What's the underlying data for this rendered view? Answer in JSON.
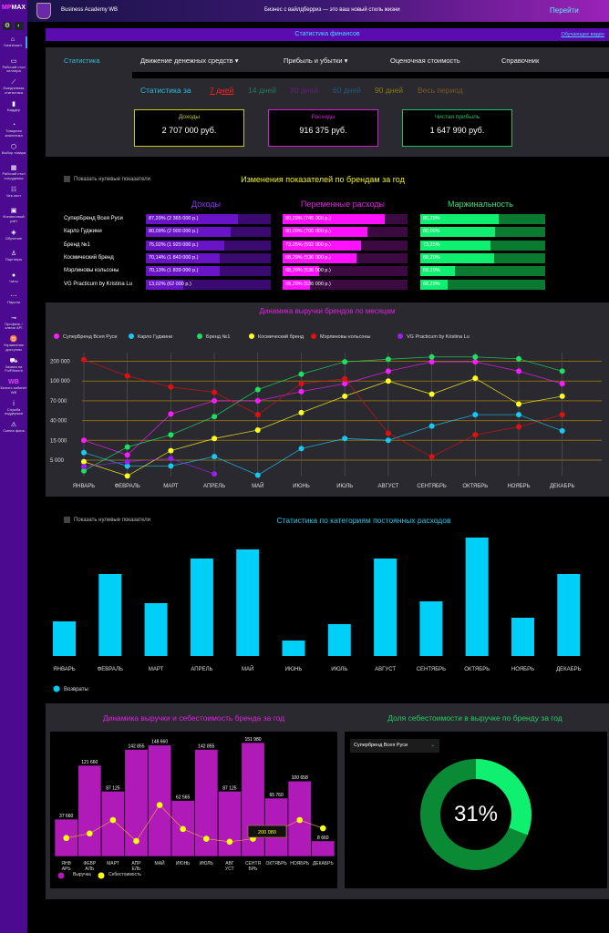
{
  "sidebar": {
    "logo_a": "MP",
    "logo_b": "MAX",
    "items": [
      {
        "icon": "⌂",
        "label": "Dashboard",
        "name": "home-icon"
      },
      {
        "icon": "▭",
        "label": "Рабочий стол селлера",
        "name": "laptop-icon"
      },
      {
        "icon": "⟋",
        "label": "Ежедневная статистика",
        "name": "chart-line-icon"
      },
      {
        "icon": "▮",
        "label": "Биддер",
        "name": "bar-chart-icon"
      },
      {
        "icon": "◔",
        "label": "Товарная аналитика",
        "name": "stopwatch-icon"
      },
      {
        "icon": "⬡",
        "label": "Выбор товара",
        "name": "box-icon"
      },
      {
        "icon": "▦",
        "label": "Рабочий стол сотрудника",
        "name": "building-icon"
      },
      {
        "icon": "☷",
        "label": "Чек-лист",
        "name": "checklist-icon"
      },
      {
        "icon": "▣",
        "label": "Финансовый учёт",
        "name": "money-icon"
      },
      {
        "icon": "◈",
        "label": "Обучение",
        "name": "education-icon"
      },
      {
        "icon": "♙",
        "label": "Партнеры",
        "name": "partners-icon"
      },
      {
        "icon": "●",
        "label": "Чаты",
        "name": "chat-icon"
      },
      {
        "icon": "⋯",
        "label": "Пароли",
        "name": "password-icon"
      },
      {
        "icon": "⊸",
        "label": "Профиль / ключи API",
        "name": "key-icon"
      },
      {
        "icon": "♉",
        "label": "Управление доступом",
        "name": "access-icon"
      },
      {
        "icon": "⛟",
        "label": "Заявка на FulFillment",
        "name": "truck-icon"
      },
      {
        "icon": "WB",
        "label": "Бизнес кабинет WB",
        "name": "wb-icon"
      },
      {
        "icon": "i",
        "label": "Служба поддержки",
        "name": "info-icon"
      },
      {
        "icon": "⚠",
        "label": "Смена фона",
        "name": "background-icon"
      }
    ]
  },
  "header": {
    "brand": "Business Academy WB",
    "slogan": "Бизнес с вайлдберриз — это ваш новый стиль жизни",
    "go": "Перейти"
  },
  "page": {
    "title": "Статистика финансов",
    "video_link": "Обучающее видео"
  },
  "tabs": [
    "Статистика",
    "Движение денежных средств ▾",
    "Прибыль и убытки ▾",
    "Оценочная стоимость",
    "Справочник"
  ],
  "periods": {
    "label": "Статистика за",
    "items": [
      {
        "t": "7 дней",
        "c": "#ff2020"
      },
      {
        "t": "14 дней",
        "c": "#1f7a5a"
      },
      {
        "t": "30 дней",
        "c": "#6a1a78"
      },
      {
        "t": "60 дней",
        "c": "#1e5a80"
      },
      {
        "t": "90 дней",
        "c": "#8a7a10"
      },
      {
        "t": "Весь период",
        "c": "#7a5a20"
      }
    ]
  },
  "cards": [
    {
      "label": "Доходы",
      "value": "2 707 000 руб.",
      "color": "#c8c820"
    },
    {
      "label": "Расходы",
      "value": "916 375 руб.",
      "color": "#d020d0"
    },
    {
      "label": "Чистая прибыль",
      "value": "1 647 990 руб.",
      "color": "#20c060"
    }
  ],
  "brands": {
    "show_zero": "Показать нулевые показатели",
    "title": "Изменения показателей по брендам за год",
    "col_income": "Доходы",
    "col_var": "Переменные расходы",
    "col_margin": "Маржинальность",
    "rows": [
      {
        "name": "СуперБренд Всея Руси",
        "income": "87,29% (2 365 000 р.)",
        "income_fill": 0.74,
        "var": "80,29% (745 000 р.)",
        "var_fill": 0.82,
        "margin": "80,29%",
        "margin_fill": 0.63
      },
      {
        "name": "Карло Гуджини",
        "income": "80,09% (2 000 000 р.)",
        "income_fill": 0.68,
        "var": "80,09% (700 000 р.)",
        "var_fill": 0.68,
        "margin": "80,09%",
        "margin_fill": 0.6
      },
      {
        "name": "Бренд №1",
        "income": "75,02% (1 920 000 р.)",
        "income_fill": 0.63,
        "var": "73,25% (592 000 р.)",
        "var_fill": 0.63,
        "margin": "73,25%",
        "margin_fill": 0.56
      },
      {
        "name": "Космический бренд",
        "income": "70,14% (1 840 000 р.)",
        "income_fill": 0.59,
        "var": "68,29% (536 000 р.)",
        "var_fill": 0.59,
        "margin": "68,29%",
        "margin_fill": 0.59
      },
      {
        "name": "Мэрлиновы кольсоны",
        "income": "70,13% (1 839 000 р.)",
        "income_fill": 0.59,
        "var": "68,29% (536 000 р.)",
        "var_fill": 0.29,
        "margin": "68,29%",
        "margin_fill": 0.28
      },
      {
        "name": "VG Practicum by Kristina Lu",
        "income": "13,02% (62 000 р.)",
        "income_fill": 0.3,
        "var": "68,29% (536 000 р.)",
        "var_fill": 0.22,
        "margin": "68,29%",
        "margin_fill": 0.22
      }
    ]
  },
  "chart_data": [
    {
      "type": "line",
      "title": "Динамика выручки брендов по месяцам",
      "x": [
        "ЯНВАРЬ",
        "ФЕВРАЛЬ",
        "МАРТ",
        "АПРЕЛЬ",
        "МАЙ",
        "ИЮНЬ",
        "ИЮЛЬ",
        "АВГУСТ",
        "СЕНТЯБРЬ",
        "ОКТЯБРЬ",
        "НОЯБРЬ",
        "ДЕКАБРЬ"
      ],
      "yticks": [
        200000,
        100000,
        70000,
        40000,
        15000,
        5000
      ],
      "ytick_labels": [
        "200 000",
        "100 000",
        "70 000",
        "40 000",
        "15 000",
        "5 000"
      ],
      "legend": "top-left",
      "series": [
        {
          "name": "СуперБренд Всея Руси",
          "color": "#ff1aff",
          "values": [
            15000,
            7600,
            50000,
            70000,
            70000,
            84000,
            96000,
            150000,
            197000,
            197000,
            150000,
            96000
          ]
        },
        {
          "name": "Карло Гуджини",
          "color": "#18c8f0",
          "values": [
            8800,
            3500,
            3500,
            6800,
            1200,
            10800,
            17300,
            15000,
            33000,
            49000,
            49000,
            27000
          ]
        },
        {
          "name": "Бренд №1",
          "color": "#1ee060",
          "values": [
            2300,
            11600,
            22000,
            46000,
            87000,
            135000,
            197000,
            210000,
            222000,
            222000,
            212000,
            150000
          ]
        },
        {
          "name": "Космический бренд",
          "color": "#ffff20",
          "values": [
            4600,
            1000,
            9800,
            17300,
            28000,
            52000,
            77000,
            100000,
            80000,
            114000,
            65000,
            77000
          ]
        },
        {
          "name": "Мэрлиновы кольсоны",
          "color": "#e01010",
          "values": [
            208000,
            126000,
            91000,
            83000,
            49000,
            96000,
            111000,
            24000,
            6700,
            22000,
            32000,
            49000
          ]
        },
        {
          "name": "VG Practicum by Kristina Lu",
          "color": "#9a20f0",
          "values": [
            3400,
            4600,
            5800,
            1500,
            null,
            null,
            null,
            null,
            null,
            null,
            null,
            null
          ]
        }
      ]
    },
    {
      "type": "bar",
      "title": "Статистика по категориям постоянных расходов",
      "show_zero": "Показать нулевые показатели",
      "x": [
        "ЯНВАРЬ",
        "ФЕВРАЛЬ",
        "МАРТ",
        "АПРЕЛЬ",
        "МАЙ",
        "ИЮНЬ",
        "ИЮЛЬ",
        "АВГУСТ",
        "СЕНТЯБРЬ",
        "ОКТЯБРЬ",
        "НОЯБРЬ",
        "ДЕКАБРЬ"
      ],
      "series": [
        {
          "name": "Возвраты",
          "color": "#00d0f8",
          "values": [
            38,
            90,
            58,
            107,
            117,
            17,
            35,
            107,
            60,
            130,
            42,
            90
          ]
        }
      ],
      "legend": "bottom-left"
    },
    {
      "type": "bar",
      "title": "Динамика выручки и себестоимость бренда за год",
      "x": [
        "ЯНВ АРЬ",
        "ФЕВР АЛЬ",
        "МАРТ",
        "АПР ЕЛЬ",
        "МАЙ",
        "ИЮНЬ",
        "ИЮЛЬ",
        "АВГ УСТ",
        "СЕНТЯ БРЬ",
        "ОКТЯБРЬ",
        "НОЯБРЬ",
        "ДЕКАБРЬ"
      ],
      "series": [
        {
          "name": "Выручка",
          "color": "#b01ab8",
          "values": [
            37660,
            121660,
            87125,
            142855,
            148660,
            62565,
            142855,
            87125,
            151980,
            65760,
            100658,
            8660
          ],
          "labels": [
            "37 660",
            "121 660",
            "87 125",
            "142 855",
            "148 660",
            "62 565",
            "142 855",
            "87 125",
            "151 980",
            "65 760",
            "100 658",
            "8 660"
          ]
        },
        {
          "name": "Себестоимость",
          "color": "#ffff10",
          "values": [
            21000,
            27000,
            45000,
            17000,
            65000,
            33000,
            20000,
            16000,
            20000,
            30000,
            45000,
            34000
          ]
        }
      ],
      "tooltip": "200 080"
    },
    {
      "type": "pie",
      "title": "Доля себестоимости в выручке по бренду за год",
      "select": "Суперб­ренд Всея Руси",
      "value": 31,
      "label": "31%",
      "colors": [
        "#10f070",
        "#0a8a34"
      ]
    }
  ]
}
